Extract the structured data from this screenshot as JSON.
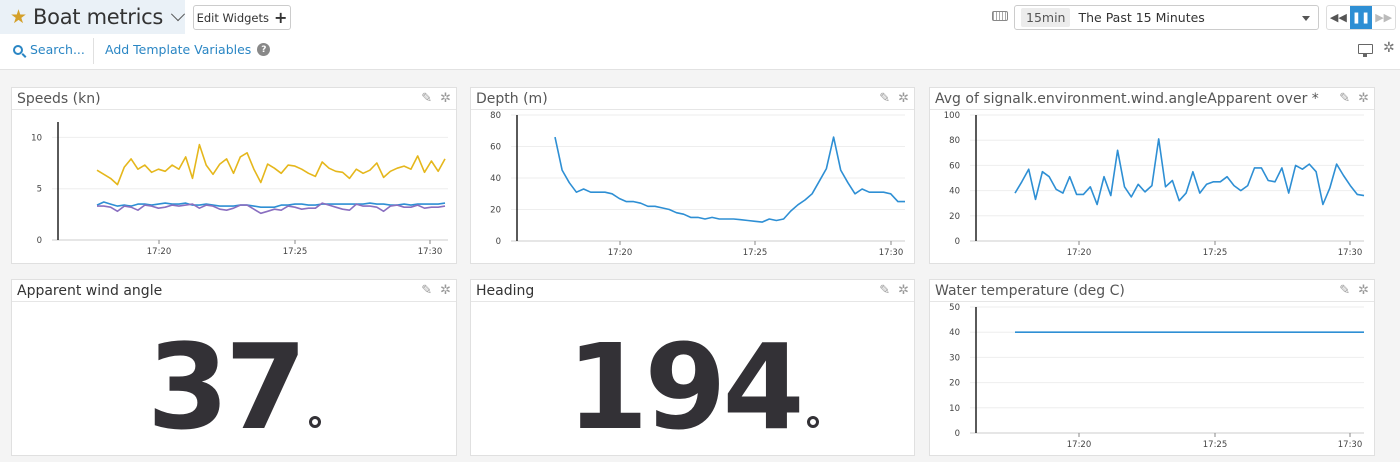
{
  "header": {
    "title": "Boat metrics",
    "edit_widgets_label": "Edit Widgets",
    "search_label": "Search...",
    "template_vars_label": "Add Template Variables",
    "help_glyph": "?",
    "time_badge": "15min",
    "time_range_label": "The Past 15 Minutes",
    "icons": [
      "star-icon",
      "chevron-down-icon",
      "plus-icon",
      "search-icon",
      "help-icon",
      "keyboard-icon",
      "rewind-icon",
      "pause-icon",
      "fast-forward-icon",
      "tv-mode-icon",
      "gear-icon"
    ],
    "playback": {
      "back": "◀◀",
      "pause": "❚❚",
      "forward": "▶▶"
    },
    "accent_color": "#2e8fd4",
    "link_color": "#2a86c4"
  },
  "panels": [
    {
      "id": "speeds",
      "title": "Speeds (kn)"
    },
    {
      "id": "depth",
      "title": "Depth (m)"
    },
    {
      "id": "wind",
      "title": "Avg of signalk.environment.wind.angleApparent over *"
    },
    {
      "id": "awa",
      "title": "Apparent wind angle",
      "value": "37",
      "unit": "°"
    },
    {
      "id": "heading",
      "title": "Heading",
      "value": "194",
      "unit": "°"
    },
    {
      "id": "water",
      "title": "Water temperature (deg C)"
    }
  ],
  "chart_data": [
    {
      "type": "line",
      "title": "Speeds (kn)",
      "x_ticks": [
        "17:20",
        "17:25",
        "17:30"
      ],
      "y_ticks": [
        0,
        5,
        10
      ],
      "ylim": [
        0,
        11.5
      ],
      "grid": true,
      "series": [
        {
          "name": "series-yellow",
          "color": "#e5b71c",
          "values": [
            6.8,
            6.4,
            6.0,
            5.4,
            7.1,
            7.9,
            6.9,
            7.3,
            6.6,
            6.9,
            6.7,
            7.3,
            6.9,
            8.1,
            6.0,
            9.3,
            7.3,
            6.4,
            7.4,
            7.9,
            6.5,
            8.1,
            8.5,
            6.9,
            5.6,
            7.4,
            7.0,
            6.5,
            7.3,
            7.2,
            6.9,
            6.5,
            6.2,
            7.6,
            7.0,
            6.7,
            6.6,
            6.0,
            6.9,
            6.5,
            6.8,
            7.5,
            6.1,
            6.7,
            7.0,
            7.2,
            6.9,
            8.2,
            6.6,
            7.7,
            6.7,
            7.9
          ]
        },
        {
          "name": "series-blue",
          "color": "#2e8fd4",
          "values": [
            3.4,
            3.7,
            3.5,
            3.3,
            3.4,
            3.3,
            3.5,
            3.5,
            3.4,
            3.5,
            3.6,
            3.5,
            3.5,
            3.6,
            3.4,
            3.4,
            3.5,
            3.4,
            3.3,
            3.3,
            3.3,
            3.4,
            3.4,
            3.3,
            3.2,
            3.2,
            3.2,
            3.4,
            3.4,
            3.5,
            3.5,
            3.4,
            3.4,
            3.5,
            3.5,
            3.5,
            3.5,
            3.5,
            3.5,
            3.5,
            3.6,
            3.5,
            3.5,
            3.4,
            3.4,
            3.5,
            3.4,
            3.5,
            3.5,
            3.5,
            3.5,
            3.6
          ]
        },
        {
          "name": "series-purple",
          "color": "#8a6fc0",
          "values": [
            3.3,
            3.3,
            3.2,
            2.8,
            3.3,
            3.2,
            2.9,
            3.4,
            3.3,
            3.1,
            3.2,
            3.4,
            3.3,
            3.4,
            3.5,
            3.1,
            3.4,
            3.3,
            3.0,
            2.9,
            3.1,
            3.4,
            3.4,
            3.0,
            2.6,
            2.8,
            3.0,
            2.9,
            3.3,
            3.2,
            3.0,
            3.1,
            3.1,
            3.6,
            3.4,
            3.2,
            3.0,
            2.9,
            3.5,
            3.3,
            3.3,
            3.2,
            2.8,
            3.3,
            3.4,
            3.2,
            3.2,
            3.4,
            3.1,
            3.2,
            3.2,
            3.3
          ]
        }
      ]
    },
    {
      "type": "line",
      "title": "Depth (m)",
      "x_ticks": [
        "17:20",
        "17:25",
        "17:30"
      ],
      "y_ticks": [
        0,
        20,
        40,
        60,
        80
      ],
      "ylim": [
        0,
        80
      ],
      "grid": true,
      "series": [
        {
          "name": "depth",
          "color": "#2e8fd4",
          "values": [
            66,
            45,
            37,
            31,
            33,
            31,
            31,
            31,
            30,
            27,
            25,
            25,
            24,
            22,
            22,
            21,
            20,
            18,
            17,
            15,
            15,
            14,
            15,
            14,
            14,
            14,
            13.5,
            13,
            12.5,
            12,
            14,
            13,
            14,
            19,
            23,
            26,
            30,
            38,
            46,
            66,
            45,
            37,
            30,
            33,
            31,
            31,
            31,
            30,
            25,
            25
          ]
        }
      ]
    },
    {
      "type": "line",
      "title": "Avg of signalk.environment.wind.angleApparent over *",
      "x_ticks": [
        "17:20",
        "17:25",
        "17:30"
      ],
      "y_ticks": [
        0,
        20,
        40,
        60,
        80,
        100
      ],
      "ylim": [
        0,
        100
      ],
      "grid": true,
      "series": [
        {
          "name": "wind-angle",
          "color": "#2e8fd4",
          "values": [
            38,
            47,
            57,
            33,
            55,
            51,
            41,
            38,
            51,
            37,
            37,
            43,
            29,
            51,
            36,
            72,
            43,
            35,
            45,
            39,
            44,
            81,
            43,
            48,
            32,
            38,
            55,
            38,
            45,
            47,
            47,
            51,
            44,
            40,
            44,
            58,
            58,
            48,
            47,
            58,
            38,
            60,
            57,
            61,
            55,
            29,
            42,
            61,
            52,
            44,
            37,
            36
          ]
        }
      ]
    },
    {
      "type": "line",
      "title": "Water temperature (deg C)",
      "x_ticks": [
        "17:20",
        "17:25",
        "17:30"
      ],
      "y_ticks": [
        0,
        10,
        20,
        30,
        40,
        50
      ],
      "ylim": [
        0,
        50
      ],
      "grid": true,
      "series": [
        {
          "name": "water-temp",
          "color": "#2e8fd4",
          "values": [
            40,
            40
          ]
        }
      ]
    }
  ]
}
